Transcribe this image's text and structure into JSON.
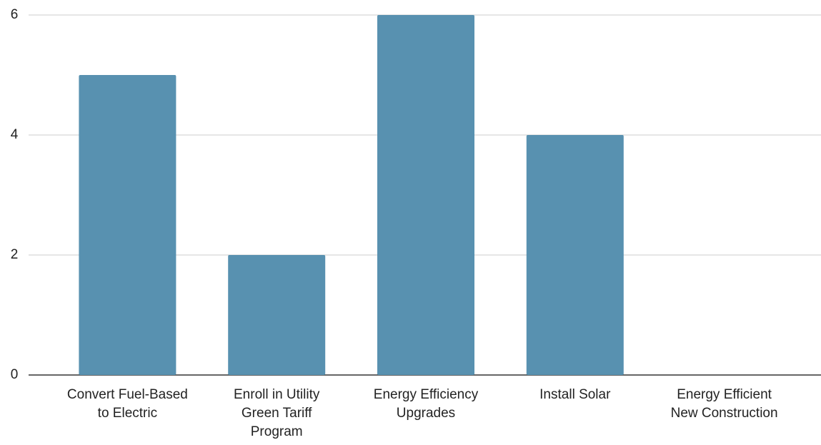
{
  "chart_data": {
    "type": "bar",
    "categories": [
      "Convert Fuel-Based to Electric",
      "Enroll in Utility Green Tariff Program",
      "Energy Efficiency Upgrades",
      "Install Solar",
      "Energy Efficient New Construction"
    ],
    "values": [
      5,
      2,
      6,
      4,
      0
    ],
    "color": "#5891b0",
    "ylim": [
      0,
      6
    ],
    "yticks": [
      0,
      2,
      4,
      6
    ],
    "grid": true
  }
}
